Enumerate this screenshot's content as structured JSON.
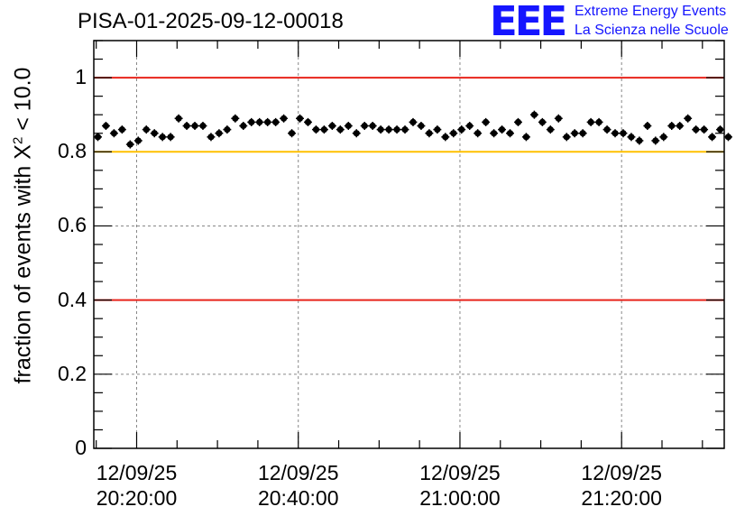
{
  "title": "PISA-01-2025-09-12-00018",
  "logo": {
    "mark": "EEE",
    "line1": "Extreme Energy Events",
    "line2": "La Scienza nelle Scuole"
  },
  "chart_data": {
    "type": "scatter",
    "title": "PISA-01-2025-09-12-00018",
    "ylabel_prefix": "fraction of events with Χ",
    "ylabel_sup": "2",
    "ylabel_suffix": " < 10.0",
    "xlabel": "",
    "ylim": [
      0,
      1.1
    ],
    "xlim": [
      0,
      78
    ],
    "yticks": [
      {
        "value": 0,
        "label": "0"
      },
      {
        "value": 0.2,
        "label": "0.2"
      },
      {
        "value": 0.4,
        "label": "0.4"
      },
      {
        "value": 0.6,
        "label": "0.6"
      },
      {
        "value": 0.8,
        "label": "0.8"
      },
      {
        "value": 1,
        "label": "1"
      }
    ],
    "xticks": [
      {
        "value": 5.3,
        "date": "12/09/25",
        "time": "20:20:00"
      },
      {
        "value": 25.3,
        "date": "12/09/25",
        "time": "20:40:00"
      },
      {
        "value": 45.3,
        "date": "12/09/25",
        "time": "21:00:00"
      },
      {
        "value": 65.3,
        "date": "12/09/25",
        "time": "21:20:00"
      }
    ],
    "grid": true,
    "reference_lines": [
      {
        "y": 1.0,
        "color": "#e8241c"
      },
      {
        "y": 0.8,
        "color": "#ffc000"
      },
      {
        "y": 0.4,
        "color": "#e8241c"
      }
    ],
    "y": [
      0.84,
      0.87,
      0.85,
      0.86,
      0.82,
      0.83,
      0.86,
      0.85,
      0.84,
      0.84,
      0.89,
      0.87,
      0.87,
      0.87,
      0.84,
      0.85,
      0.86,
      0.89,
      0.87,
      0.88,
      0.88,
      0.88,
      0.88,
      0.89,
      0.85,
      0.89,
      0.88,
      0.86,
      0.86,
      0.87,
      0.86,
      0.87,
      0.85,
      0.87,
      0.87,
      0.86,
      0.86,
      0.86,
      0.86,
      0.88,
      0.87,
      0.85,
      0.86,
      0.84,
      0.85,
      0.86,
      0.87,
      0.85,
      0.88,
      0.85,
      0.86,
      0.85,
      0.88,
      0.84,
      0.9,
      0.88,
      0.86,
      0.89,
      0.84,
      0.85,
      0.85,
      0.88,
      0.88,
      0.86,
      0.85,
      0.85,
      0.84,
      0.83,
      0.87,
      0.83,
      0.84,
      0.87,
      0.87,
      0.89,
      0.86,
      0.86,
      0.84,
      0.86,
      0.84
    ],
    "y_error": 0.011
  }
}
